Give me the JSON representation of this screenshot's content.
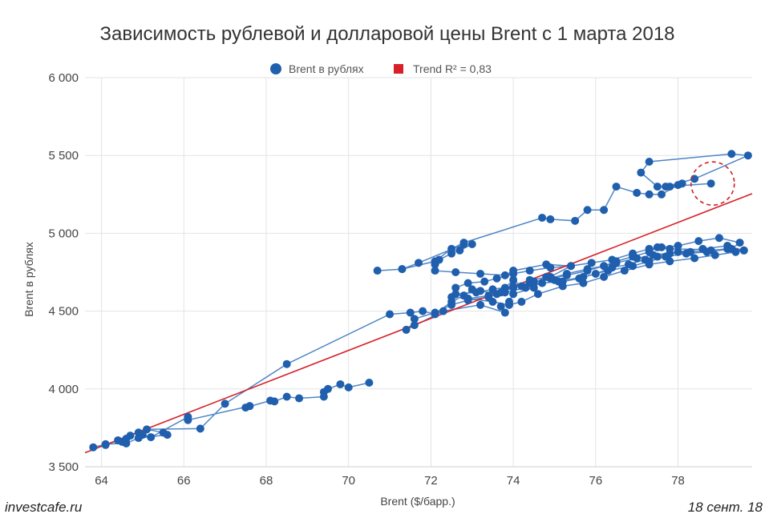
{
  "chart_data": {
    "type": "scatter",
    "title": "Зависимость рублевой и долларовой цены Brent с 1 марта 2018",
    "xlabel": "Brent ($/барр.)",
    "ylabel": "Brent в рублях",
    "xlim": [
      63.6,
      79.8
    ],
    "ylim": [
      3500,
      6000
    ],
    "x_ticks": [
      64,
      66,
      68,
      70,
      72,
      74,
      76,
      78
    ],
    "x_tick_labels": [
      "64",
      "66",
      "68",
      "70",
      "72",
      "74",
      "76",
      "78"
    ],
    "y_ticks": [
      3500,
      4000,
      4500,
      5000,
      5500,
      6000
    ],
    "y_tick_labels": [
      "3 500",
      "4 000",
      "4 500",
      "5 000",
      "5 500",
      "6 000"
    ],
    "grid": true,
    "legend_position": "top-center",
    "series": [
      {
        "name": "Brent в рублях",
        "color": "#1f5fae",
        "line_color": "#4f86c6",
        "points": [
          [
            70.5,
            4040
          ],
          [
            70.0,
            4010
          ],
          [
            69.8,
            4030
          ],
          [
            69.5,
            4000
          ],
          [
            69.4,
            3980
          ],
          [
            69.4,
            3950
          ],
          [
            68.8,
            3940
          ],
          [
            68.5,
            3950
          ],
          [
            68.2,
            3920
          ],
          [
            68.1,
            3925
          ],
          [
            67.5,
            3880
          ],
          [
            67.6,
            3890
          ],
          [
            66.1,
            3800
          ],
          [
            66.1,
            3820
          ],
          [
            65.2,
            3690
          ],
          [
            65.0,
            3705
          ],
          [
            64.9,
            3720
          ],
          [
            64.7,
            3700
          ],
          [
            64.6,
            3680
          ],
          [
            64.5,
            3660
          ],
          [
            64.4,
            3670
          ],
          [
            64.1,
            3640
          ],
          [
            63.8,
            3625
          ],
          [
            64.1,
            3645
          ],
          [
            64.6,
            3650
          ],
          [
            64.9,
            3685
          ],
          [
            65.6,
            3705
          ],
          [
            65.5,
            3720
          ],
          [
            65.1,
            3740
          ],
          [
            66.4,
            3745
          ],
          [
            67.0,
            3905
          ],
          [
            68.5,
            4160
          ],
          [
            71.0,
            4480
          ],
          [
            71.5,
            4490
          ],
          [
            71.8,
            4500
          ],
          [
            72.1,
            4480
          ],
          [
            72.5,
            4560
          ],
          [
            72.8,
            4600
          ],
          [
            73.0,
            4640
          ],
          [
            73.2,
            4630
          ],
          [
            73.6,
            4610
          ],
          [
            73.8,
            4650
          ],
          [
            74.0,
            4700
          ],
          [
            74.2,
            4660
          ],
          [
            74.5,
            4680
          ],
          [
            74.8,
            4720
          ],
          [
            75.0,
            4700
          ],
          [
            75.2,
            4690
          ],
          [
            75.6,
            4710
          ],
          [
            76.0,
            4740
          ],
          [
            76.4,
            4780
          ],
          [
            76.8,
            4800
          ],
          [
            77.2,
            4830
          ],
          [
            77.5,
            4850
          ],
          [
            77.8,
            4870
          ],
          [
            78.3,
            4880
          ],
          [
            78.8,
            4890
          ],
          [
            79.2,
            4900
          ],
          [
            79.6,
            4890
          ],
          [
            79.2,
            4920
          ],
          [
            78.6,
            4900
          ],
          [
            78.0,
            4880
          ],
          [
            77.4,
            4860
          ],
          [
            77.0,
            4840
          ],
          [
            76.5,
            4810
          ],
          [
            76.2,
            4790
          ],
          [
            75.8,
            4760
          ],
          [
            75.3,
            4730
          ],
          [
            74.9,
            4710
          ],
          [
            74.5,
            4690
          ],
          [
            74.0,
            4660
          ],
          [
            73.5,
            4640
          ],
          [
            73.1,
            4620
          ],
          [
            72.6,
            4610
          ],
          [
            72.9,
            4580
          ],
          [
            73.4,
            4600
          ],
          [
            73.8,
            4620
          ],
          [
            74.3,
            4650
          ],
          [
            74.7,
            4680
          ],
          [
            75.1,
            4690
          ],
          [
            75.7,
            4720
          ],
          [
            76.3,
            4760
          ],
          [
            76.9,
            4790
          ],
          [
            77.3,
            4820
          ],
          [
            77.7,
            4850
          ],
          [
            78.2,
            4870
          ],
          [
            78.7,
            4880
          ],
          [
            79.3,
            4900
          ],
          [
            79.5,
            4940
          ],
          [
            79.0,
            4970
          ],
          [
            78.5,
            4950
          ],
          [
            78.0,
            4920
          ],
          [
            77.6,
            4910
          ],
          [
            77.3,
            4900
          ],
          [
            76.9,
            4870
          ],
          [
            76.4,
            4830
          ],
          [
            75.9,
            4810
          ],
          [
            75.4,
            4790
          ],
          [
            74.9,
            4780
          ],
          [
            74.4,
            4760
          ],
          [
            74.0,
            4740
          ],
          [
            73.6,
            4710
          ],
          [
            73.3,
            4690
          ],
          [
            72.9,
            4680
          ],
          [
            72.6,
            4650
          ],
          [
            72.5,
            4590
          ],
          [
            72.9,
            4580
          ],
          [
            73.5,
            4560
          ],
          [
            73.9,
            4540
          ],
          [
            74.2,
            4560
          ],
          [
            74.6,
            4610
          ],
          [
            75.2,
            4660
          ],
          [
            75.7,
            4680
          ],
          [
            76.2,
            4720
          ],
          [
            76.7,
            4760
          ],
          [
            77.3,
            4800
          ],
          [
            77.8,
            4820
          ],
          [
            78.4,
            4840
          ],
          [
            78.9,
            4860
          ],
          [
            79.4,
            4880
          ],
          [
            79.6,
            4890
          ],
          [
            77.8,
            4900
          ],
          [
            77.5,
            4910
          ],
          [
            77.3,
            4880
          ],
          [
            76.9,
            4850
          ],
          [
            76.5,
            4820
          ],
          [
            76.2,
            4790
          ],
          [
            75.8,
            4770
          ],
          [
            75.3,
            4740
          ],
          [
            74.9,
            4710
          ],
          [
            74.4,
            4680
          ],
          [
            74.0,
            4650
          ],
          [
            73.7,
            4620
          ],
          [
            73.4,
            4590
          ],
          [
            72.9,
            4570
          ],
          [
            72.5,
            4540
          ],
          [
            72.1,
            4490
          ],
          [
            71.6,
            4450
          ],
          [
            71.6,
            4410
          ],
          [
            71.4,
            4380
          ],
          [
            72.3,
            4500
          ],
          [
            73.2,
            4540
          ],
          [
            73.8,
            4490
          ],
          [
            73.7,
            4530
          ],
          [
            73.9,
            4560
          ],
          [
            74.0,
            4610
          ],
          [
            74.5,
            4650
          ],
          [
            74.4,
            4700
          ],
          [
            74.9,
            4720
          ],
          [
            75.4,
            4790
          ],
          [
            74.8,
            4800
          ],
          [
            74.0,
            4760
          ],
          [
            73.8,
            4730
          ],
          [
            73.2,
            4740
          ],
          [
            72.6,
            4750
          ],
          [
            72.1,
            4760
          ],
          [
            72.1,
            4800
          ],
          [
            72.2,
            4830
          ],
          [
            72.5,
            4870
          ],
          [
            73.0,
            4930
          ],
          [
            72.7,
            4890
          ],
          [
            72.8,
            4930
          ],
          [
            71.7,
            4810
          ],
          [
            71.3,
            4770
          ],
          [
            70.7,
            4760
          ],
          [
            71.3,
            4770
          ],
          [
            72.1,
            4820
          ],
          [
            72.5,
            4900
          ],
          [
            72.8,
            4940
          ],
          [
            74.7,
            5100
          ],
          [
            74.9,
            5090
          ],
          [
            75.5,
            5080
          ],
          [
            75.8,
            5150
          ],
          [
            76.2,
            5150
          ],
          [
            76.5,
            5300
          ],
          [
            77.0,
            5260
          ],
          [
            77.3,
            5250
          ],
          [
            77.6,
            5250
          ],
          [
            78.0,
            5310
          ],
          [
            78.1,
            5320
          ],
          [
            77.8,
            5300
          ],
          [
            77.5,
            5300
          ],
          [
            77.1,
            5390
          ],
          [
            77.3,
            5460
          ],
          [
            79.3,
            5510
          ],
          [
            79.7,
            5500
          ],
          [
            78.4,
            5350
          ],
          [
            77.7,
            5300
          ],
          [
            78.8,
            5320
          ]
        ]
      },
      {
        "name": "Trend R² = 0,83",
        "color": "#d72027",
        "type": "line",
        "points": [
          [
            63.6,
            3590
          ],
          [
            79.8,
            5255
          ]
        ]
      }
    ],
    "annotation": {
      "type": "dashed-circle",
      "color": "#cc2222",
      "x": 78.9,
      "y": 5320
    }
  },
  "footer": {
    "source": "investcafe.ru",
    "date": "18 сент. 18"
  }
}
